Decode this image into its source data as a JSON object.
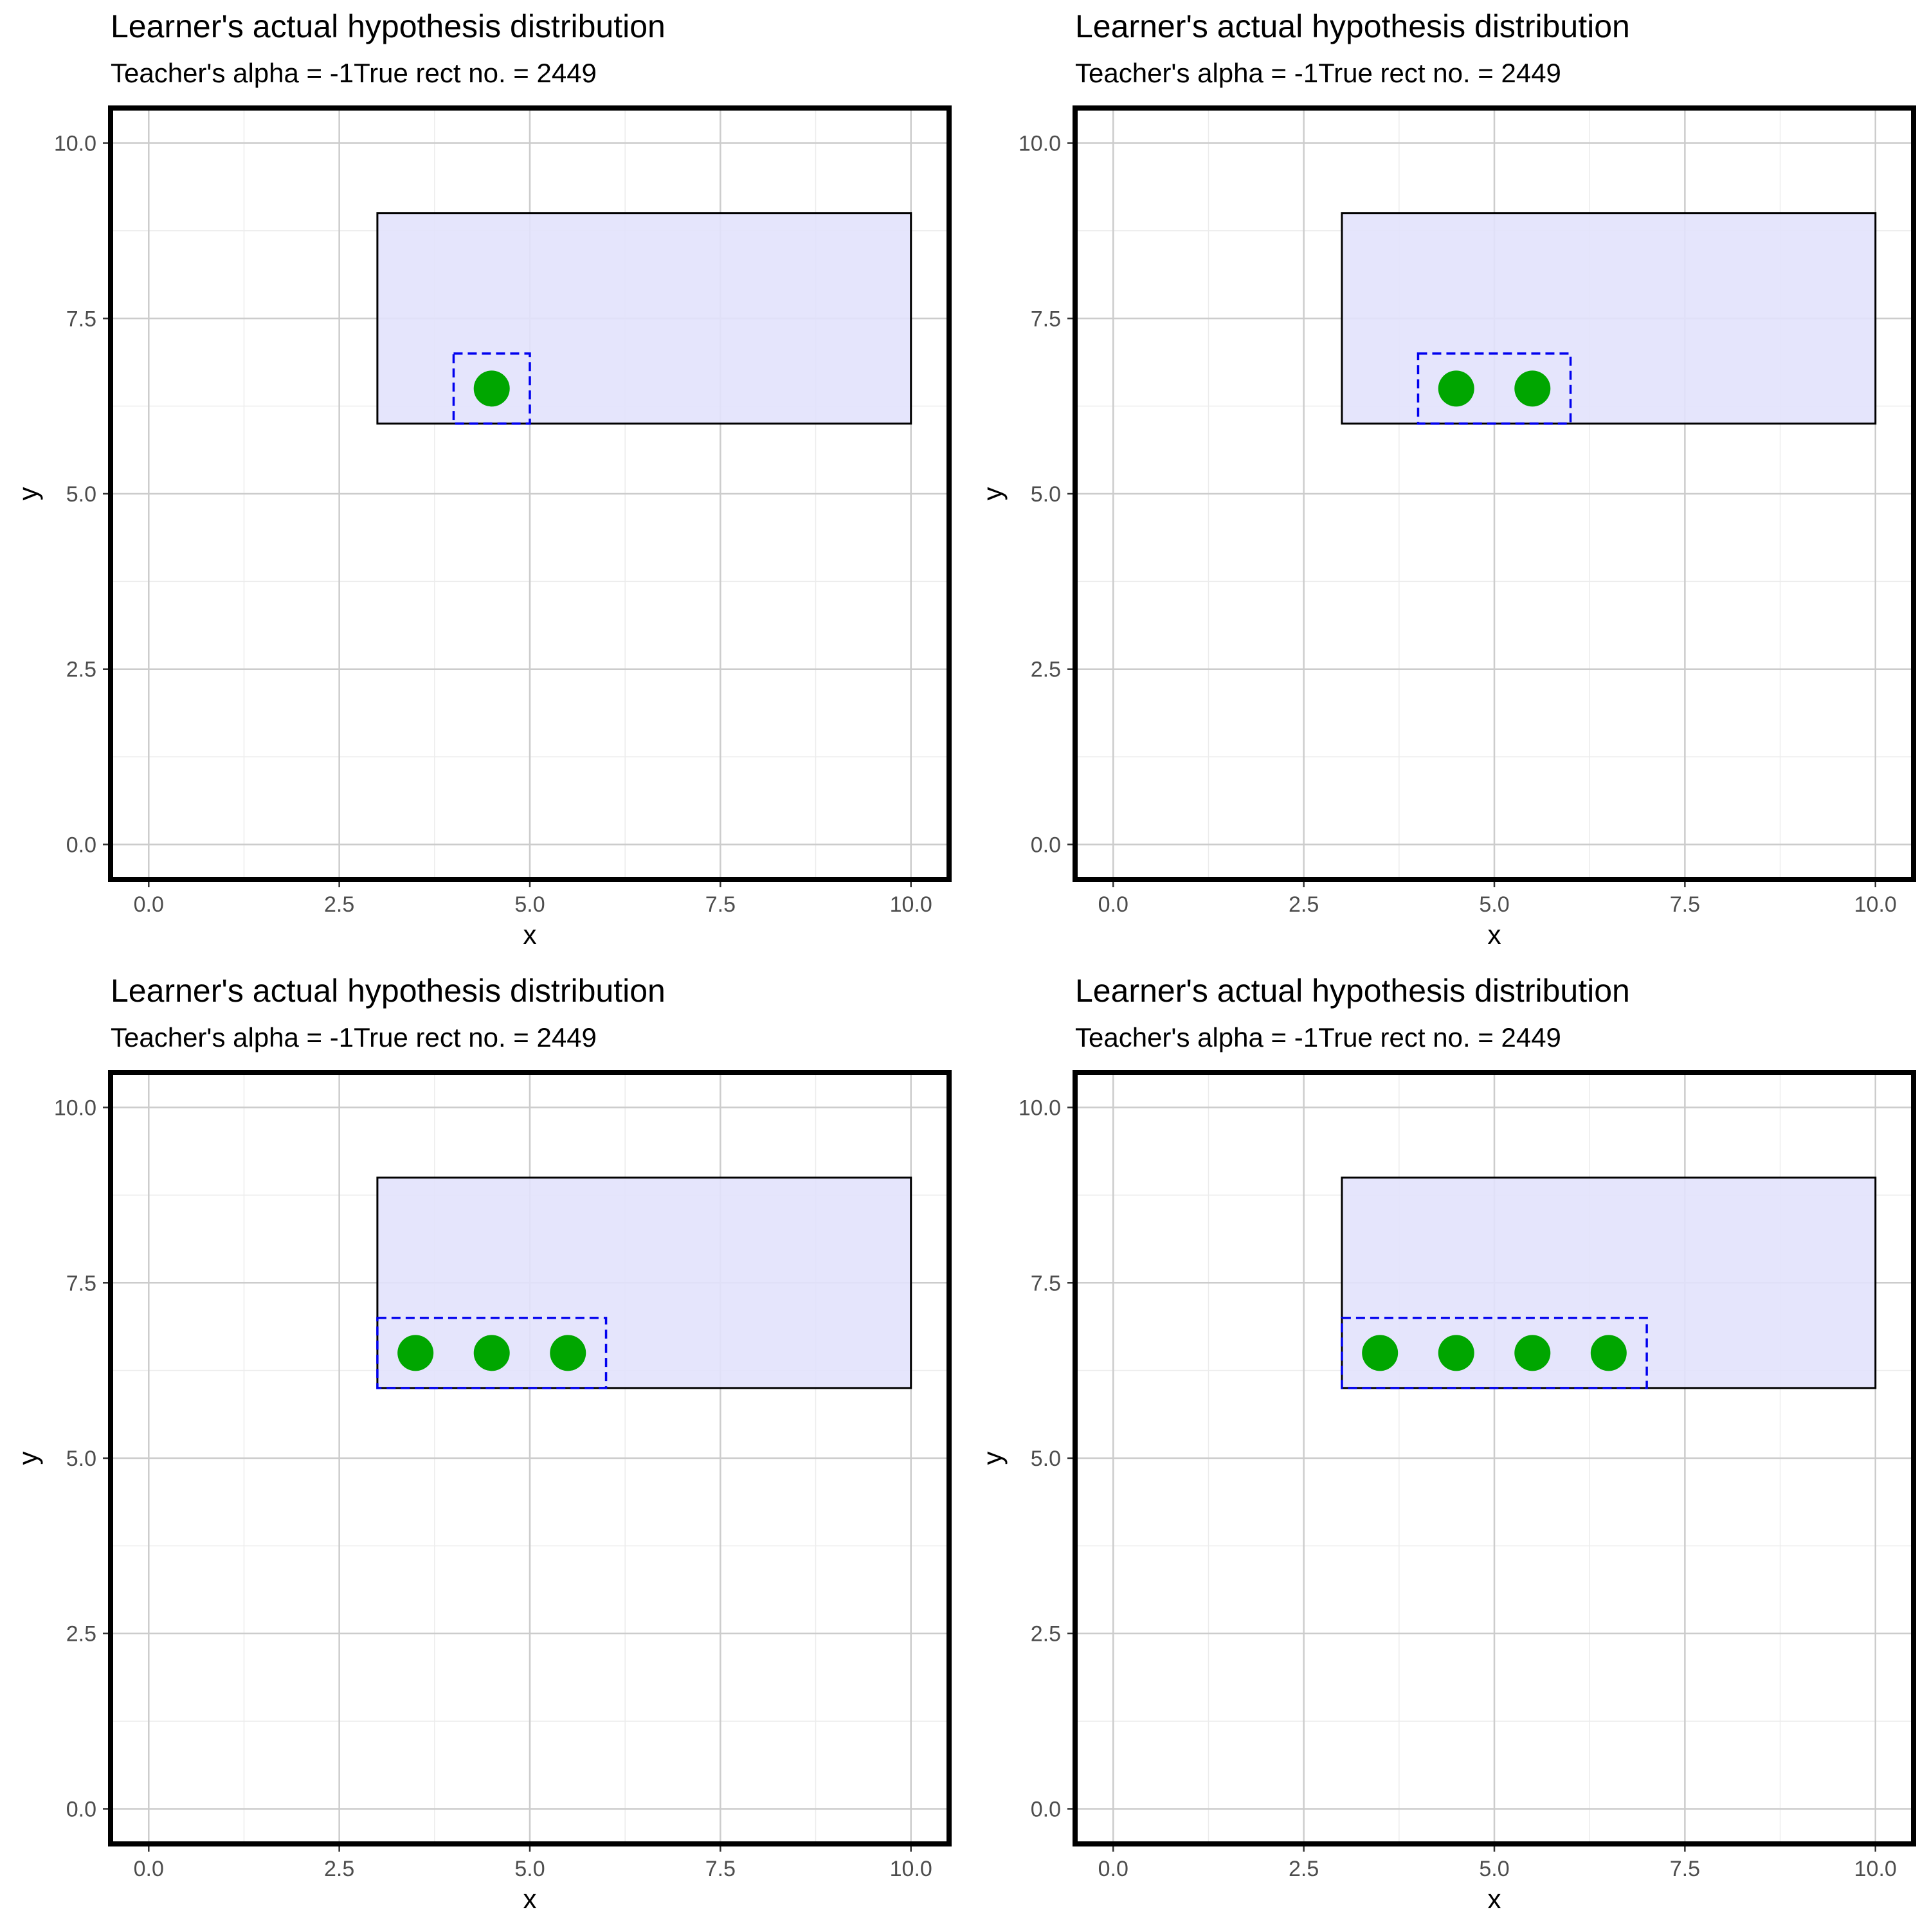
{
  "colors": {
    "true_rect_fill": "#e2e2fc",
    "true_rect_stroke": "#000000",
    "hypothesis_stroke": "#0000ee",
    "point_fill": "#00a600",
    "grid_major": "#cccccc",
    "grid_minor": "#ececec",
    "panel_border": "#000000",
    "tick_label": "#4d4d4d"
  },
  "chart_data": [
    {
      "type": "scatter",
      "title": "Learner's actual hypothesis distribution",
      "subtitle": "Teacher's alpha = -1True rect no. = 2449",
      "xlabel": "x",
      "ylabel": "y",
      "xlim": [
        -0.5,
        10.5
      ],
      "ylim": [
        -0.5,
        10.5
      ],
      "xticks": [
        "0.0",
        "2.5",
        "5.0",
        "7.5",
        "10.0"
      ],
      "yticks": [
        "0.0",
        "2.5",
        "5.0",
        "7.5",
        "10.0"
      ],
      "grid": true,
      "true_rect": {
        "x_min": 3,
        "x_max": 10,
        "y_min": 6,
        "y_max": 9
      },
      "hypothesis_rect": {
        "x_min": 4,
        "x_max": 5,
        "y_min": 6,
        "y_max": 7
      },
      "points": [
        {
          "x": 4.5,
          "y": 6.5
        }
      ]
    },
    {
      "type": "scatter",
      "title": "Learner's actual hypothesis distribution",
      "subtitle": "Teacher's alpha = -1True rect no. = 2449",
      "xlabel": "x",
      "ylabel": "y",
      "xlim": [
        -0.5,
        10.5
      ],
      "ylim": [
        -0.5,
        10.5
      ],
      "xticks": [
        "0.0",
        "2.5",
        "5.0",
        "7.5",
        "10.0"
      ],
      "yticks": [
        "0.0",
        "2.5",
        "5.0",
        "7.5",
        "10.0"
      ],
      "grid": true,
      "true_rect": {
        "x_min": 3,
        "x_max": 10,
        "y_min": 6,
        "y_max": 9
      },
      "hypothesis_rect": {
        "x_min": 4,
        "x_max": 6,
        "y_min": 6,
        "y_max": 7
      },
      "points": [
        {
          "x": 4.5,
          "y": 6.5
        },
        {
          "x": 5.5,
          "y": 6.5
        }
      ]
    },
    {
      "type": "scatter",
      "title": "Learner's actual hypothesis distribution",
      "subtitle": "Teacher's alpha = -1True rect no. = 2449",
      "xlabel": "x",
      "ylabel": "y",
      "xlim": [
        -0.5,
        10.5
      ],
      "ylim": [
        -0.5,
        10.5
      ],
      "xticks": [
        "0.0",
        "2.5",
        "5.0",
        "7.5",
        "10.0"
      ],
      "yticks": [
        "0.0",
        "2.5",
        "5.0",
        "7.5",
        "10.0"
      ],
      "grid": true,
      "true_rect": {
        "x_min": 3,
        "x_max": 10,
        "y_min": 6,
        "y_max": 9
      },
      "hypothesis_rect": {
        "x_min": 3,
        "x_max": 6,
        "y_min": 6,
        "y_max": 7
      },
      "points": [
        {
          "x": 3.5,
          "y": 6.5
        },
        {
          "x": 4.5,
          "y": 6.5
        },
        {
          "x": 5.5,
          "y": 6.5
        }
      ]
    },
    {
      "type": "scatter",
      "title": "Learner's actual hypothesis distribution",
      "subtitle": "Teacher's alpha = -1True rect no. = 2449",
      "xlabel": "x",
      "ylabel": "y",
      "xlim": [
        -0.5,
        10.5
      ],
      "ylim": [
        -0.5,
        10.5
      ],
      "xticks": [
        "0.0",
        "2.5",
        "5.0",
        "7.5",
        "10.0"
      ],
      "yticks": [
        "0.0",
        "2.5",
        "5.0",
        "7.5",
        "10.0"
      ],
      "grid": true,
      "true_rect": {
        "x_min": 3,
        "x_max": 10,
        "y_min": 6,
        "y_max": 9
      },
      "hypothesis_rect": {
        "x_min": 3,
        "x_max": 7,
        "y_min": 6,
        "y_max": 7
      },
      "points": [
        {
          "x": 3.5,
          "y": 6.5
        },
        {
          "x": 4.5,
          "y": 6.5
        },
        {
          "x": 5.5,
          "y": 6.5
        },
        {
          "x": 6.5,
          "y": 6.5
        }
      ]
    }
  ]
}
